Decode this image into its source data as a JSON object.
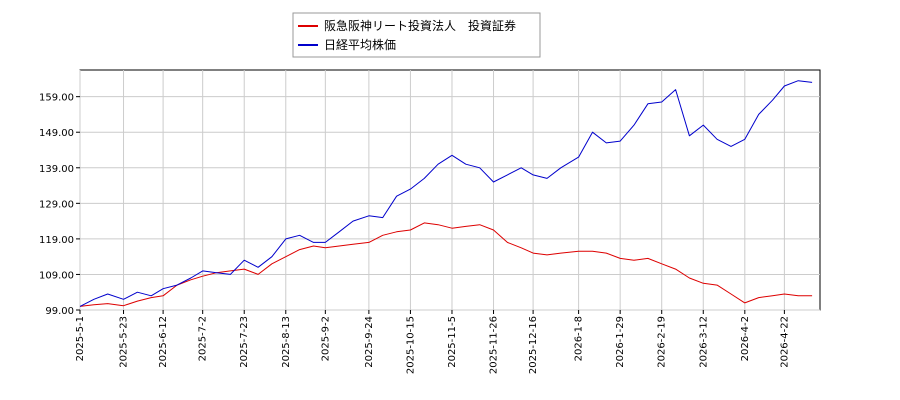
{
  "chart_data": {
    "type": "line",
    "title": "",
    "xlabel": "",
    "ylabel": "",
    "ylim": [
      99.0,
      166.5
    ],
    "yticks": [
      "99.00",
      "109.00",
      "119.00",
      "129.00",
      "139.00",
      "149.00",
      "159.00"
    ],
    "ytick_values": [
      99,
      109,
      119,
      129,
      139,
      149,
      159
    ],
    "xlim": [
      "2025-05-01",
      "2026-05-10"
    ],
    "xticks": [
      "2025-5-1",
      "2025-5-23",
      "2025-6-12",
      "2025-7-2",
      "2025-7-23",
      "2025-8-13",
      "2025-9-2",
      "2025-9-24",
      "2025-10-15",
      "2025-11-5",
      "2025-11-26",
      "2025-12-16",
      "2026-1-8",
      "2026-1-29",
      "2026-2-19",
      "2026-3-12",
      "2026-4-2",
      "2026-4-22"
    ],
    "xtick_dates": [
      "2025-05-01",
      "2025-05-23",
      "2025-06-12",
      "2025-07-02",
      "2025-07-23",
      "2025-08-13",
      "2025-09-02",
      "2025-09-24",
      "2025-10-15",
      "2025-11-05",
      "2025-11-26",
      "2025-12-16",
      "2026-01-08",
      "2026-01-29",
      "2026-02-19",
      "2026-03-12",
      "2026-04-02",
      "2026-04-22"
    ],
    "grid": true,
    "legend_position": "top-center",
    "series": [
      {
        "name": "阪急阪神リート投資法人　投資証券",
        "color": "#dd0000",
        "points": [
          [
            "2025-05-01",
            100.0
          ],
          [
            "2025-05-08",
            100.5
          ],
          [
            "2025-05-15",
            100.8
          ],
          [
            "2025-05-23",
            100.2
          ],
          [
            "2025-05-30",
            101.5
          ],
          [
            "2025-06-06",
            102.5
          ],
          [
            "2025-06-12",
            103.0
          ],
          [
            "2025-06-19",
            106.0
          ],
          [
            "2025-06-26",
            107.5
          ],
          [
            "2025-07-02",
            108.5
          ],
          [
            "2025-07-09",
            109.5
          ],
          [
            "2025-07-16",
            110.0
          ],
          [
            "2025-07-23",
            110.5
          ],
          [
            "2025-07-30",
            109.0
          ],
          [
            "2025-08-06",
            112.0
          ],
          [
            "2025-08-13",
            114.0
          ],
          [
            "2025-08-20",
            116.0
          ],
          [
            "2025-08-27",
            117.0
          ],
          [
            "2025-09-02",
            116.5
          ],
          [
            "2025-09-09",
            117.0
          ],
          [
            "2025-09-16",
            117.5
          ],
          [
            "2025-09-24",
            118.0
          ],
          [
            "2025-10-01",
            120.0
          ],
          [
            "2025-10-08",
            121.0
          ],
          [
            "2025-10-15",
            121.5
          ],
          [
            "2025-10-22",
            123.5
          ],
          [
            "2025-10-29",
            123.0
          ],
          [
            "2025-11-05",
            122.0
          ],
          [
            "2025-11-12",
            122.5
          ],
          [
            "2025-11-19",
            123.0
          ],
          [
            "2025-11-26",
            121.5
          ],
          [
            "2025-12-03",
            118.0
          ],
          [
            "2025-12-10",
            116.5
          ],
          [
            "2025-12-16",
            115.0
          ],
          [
            "2025-12-23",
            114.5
          ],
          [
            "2025-12-30",
            115.0
          ],
          [
            "2026-01-08",
            115.5
          ],
          [
            "2026-01-15",
            115.5
          ],
          [
            "2026-01-22",
            115.0
          ],
          [
            "2026-01-29",
            113.5
          ],
          [
            "2026-02-05",
            113.0
          ],
          [
            "2026-02-12",
            113.5
          ],
          [
            "2026-02-19",
            112.0
          ],
          [
            "2026-02-26",
            110.5
          ],
          [
            "2026-03-05",
            108.0
          ],
          [
            "2026-03-12",
            106.5
          ],
          [
            "2026-03-19",
            106.0
          ],
          [
            "2026-03-26",
            103.5
          ],
          [
            "2026-04-02",
            101.0
          ],
          [
            "2026-04-09",
            102.5
          ],
          [
            "2026-04-16",
            103.0
          ],
          [
            "2026-04-22",
            103.5
          ],
          [
            "2026-04-29",
            103.0
          ],
          [
            "2026-05-06",
            103.0
          ]
        ]
      },
      {
        "name": "日経平均株価",
        "color": "#0000cc",
        "points": [
          [
            "2025-05-01",
            100.0
          ],
          [
            "2025-05-08",
            102.0
          ],
          [
            "2025-05-15",
            103.5
          ],
          [
            "2025-05-23",
            102.0
          ],
          [
            "2025-05-30",
            104.0
          ],
          [
            "2025-06-06",
            103.0
          ],
          [
            "2025-06-12",
            105.0
          ],
          [
            "2025-06-19",
            106.0
          ],
          [
            "2025-06-26",
            108.0
          ],
          [
            "2025-07-02",
            110.0
          ],
          [
            "2025-07-09",
            109.5
          ],
          [
            "2025-07-16",
            109.0
          ],
          [
            "2025-07-23",
            113.0
          ],
          [
            "2025-07-30",
            111.0
          ],
          [
            "2025-08-06",
            114.0
          ],
          [
            "2025-08-13",
            119.0
          ],
          [
            "2025-08-20",
            120.0
          ],
          [
            "2025-08-27",
            118.0
          ],
          [
            "2025-09-02",
            118.0
          ],
          [
            "2025-09-09",
            121.0
          ],
          [
            "2025-09-16",
            124.0
          ],
          [
            "2025-09-24",
            125.5
          ],
          [
            "2025-10-01",
            125.0
          ],
          [
            "2025-10-08",
            131.0
          ],
          [
            "2025-10-15",
            133.0
          ],
          [
            "2025-10-22",
            136.0
          ],
          [
            "2025-10-29",
            140.0
          ],
          [
            "2025-11-05",
            142.5
          ],
          [
            "2025-11-12",
            140.0
          ],
          [
            "2025-11-19",
            139.0
          ],
          [
            "2025-11-26",
            135.0
          ],
          [
            "2025-12-03",
            137.0
          ],
          [
            "2025-12-10",
            139.0
          ],
          [
            "2025-12-16",
            137.0
          ],
          [
            "2025-12-23",
            136.0
          ],
          [
            "2025-12-30",
            139.0
          ],
          [
            "2026-01-08",
            142.0
          ],
          [
            "2026-01-15",
            149.0
          ],
          [
            "2026-01-22",
            146.0
          ],
          [
            "2026-01-29",
            146.5
          ],
          [
            "2026-02-05",
            151.0
          ],
          [
            "2026-02-12",
            157.0
          ],
          [
            "2026-02-19",
            157.5
          ],
          [
            "2026-02-26",
            161.0
          ],
          [
            "2026-03-05",
            148.0
          ],
          [
            "2026-03-12",
            151.0
          ],
          [
            "2026-03-19",
            147.0
          ],
          [
            "2026-03-26",
            145.0
          ],
          [
            "2026-04-02",
            147.0
          ],
          [
            "2026-04-09",
            154.0
          ],
          [
            "2026-04-16",
            158.0
          ],
          [
            "2026-04-22",
            162.0
          ],
          [
            "2026-04-29",
            163.5
          ],
          [
            "2026-05-06",
            163.0
          ]
        ]
      }
    ]
  }
}
